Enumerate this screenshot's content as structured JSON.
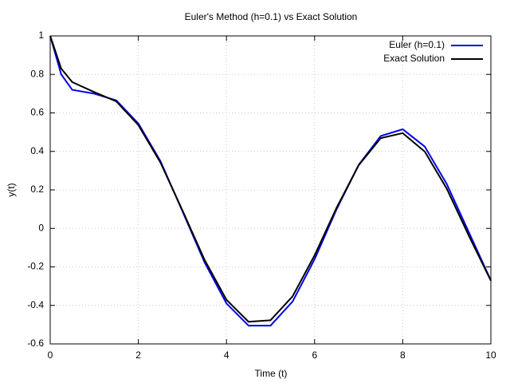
{
  "chart_data": {
    "type": "line",
    "title": "Euler's Method (h=0.1) vs Exact Solution",
    "x_label": "Time (t)",
    "y_label": "y(t)",
    "x": [
      0,
      0.25,
      0.5,
      1,
      1.5,
      2,
      2.5,
      3,
      3.5,
      4,
      4.5,
      5,
      5.5,
      6,
      6.5,
      7,
      7.5,
      8,
      8.5,
      9,
      9.5,
      10
    ],
    "series": [
      {
        "name": "Euler (h=0.1)",
        "color": "#0000ee",
        "values": [
          1,
          0.8,
          0.72,
          0.7,
          0.665,
          0.545,
          0.35,
          0.09,
          -0.175,
          -0.39,
          -0.505,
          -0.505,
          -0.38,
          -0.16,
          0.1,
          0.33,
          0.48,
          0.515,
          0.425,
          0.23,
          -0.02,
          -0.27
        ]
      },
      {
        "name": "Exact Solution",
        "color": "#000000",
        "values": [
          1,
          0.83,
          0.76,
          0.708,
          0.66,
          0.537,
          0.343,
          0.094,
          -0.162,
          -0.371,
          -0.485,
          -0.477,
          -0.353,
          -0.14,
          0.108,
          0.328,
          0.469,
          0.495,
          0.399,
          0.206,
          -0.038,
          -0.272
        ]
      }
    ],
    "xlim": [
      0,
      10
    ],
    "xticks": [
      0,
      2,
      4,
      6,
      8,
      10
    ],
    "ylim": [
      -0.6,
      1
    ],
    "yticks": [
      -0.6,
      -0.4,
      -0.2,
      0,
      0.2,
      0.4,
      0.6,
      0.8,
      1
    ],
    "grid": true,
    "legend": "top-right"
  }
}
